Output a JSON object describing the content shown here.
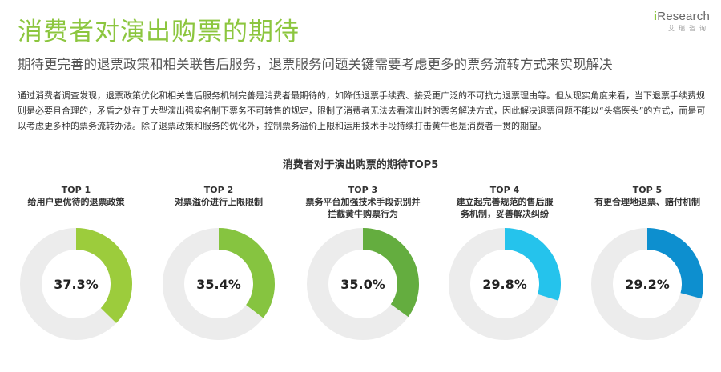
{
  "header": {
    "title": "消费者对演出购票的期待",
    "subtitle": "期待更完善的退票政策和相关联售后服务，退票服务问题关键需要考虑更多的票务流转方式来实现解决",
    "body": "通过消费者调查发现，退票政策优化和相关售后服务机制完善是消费者最期待的，如降低退票手续费、接受更广泛的不可抗力退票理由等。但从现实角度来看，当下退票手续费规则是必要且合理的，矛盾之处在于大型演出强实名制下票务不可转售的规定，限制了消费者无法去看演出时的票务解决方式，因此解决退票问题不能以“头痛医头”的方式，而是可以考虑更多种的票务流转办法。除了退票政策和服务的优化外，控制票务溢价上限和运用技术手段持续打击黄牛也是消费者一贯的期望。"
  },
  "logo": {
    "brand_i": "i",
    "brand_rest": "Research",
    "sub": "艾瑞咨询"
  },
  "chart_data": {
    "type": "pie",
    "title": "消费者对于演出购票的期待TOP5",
    "items": [
      {
        "rank": "TOP 1",
        "label": "给用户更优待的退票政策",
        "value": 37.3,
        "display": "37.3%",
        "color": "#9ccc3c"
      },
      {
        "rank": "TOP 2",
        "label": "对票溢价进行上限限制",
        "value": 35.4,
        "display": "35.4%",
        "color": "#86c440"
      },
      {
        "rank": "TOP 3",
        "label": "票务平台加强技术手段识别并拦截黄牛购票行为",
        "value": 35.0,
        "display": "35.0%",
        "color": "#64ad3f"
      },
      {
        "rank": "TOP 4",
        "label": "建立起完善规范的售后服务机制，妥善解决纠纷",
        "value": 29.8,
        "display": "29.8%",
        "color": "#25c3ec"
      },
      {
        "rank": "TOP 5",
        "label": "有更合理地退票、赔付机制",
        "value": 29.2,
        "display": "29.2%",
        "color": "#0d8fcf"
      }
    ],
    "track_color": "#ececec"
  }
}
